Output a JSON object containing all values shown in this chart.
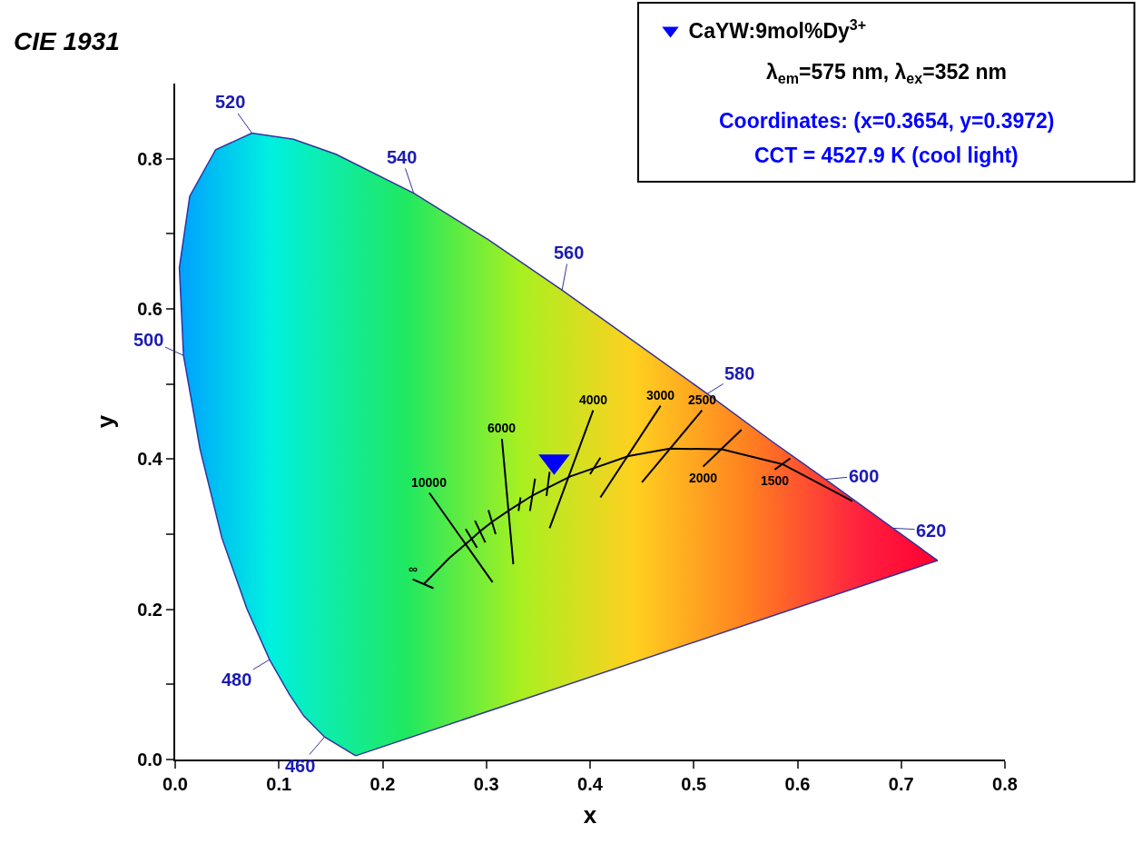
{
  "chart_data": {
    "type": "scatter",
    "title": "CIE 1931",
    "xlabel": "x",
    "ylabel": "y",
    "xlim": [
      0,
      0.8
    ],
    "xticks": [
      {
        "value": 0,
        "label": "0.0"
      },
      0.1,
      0.2,
      0.3,
      0.4,
      0.5,
      0.6,
      0.7,
      0.8
    ],
    "ylim": [
      0,
      0.9
    ],
    "yticks": [
      {
        "value": 0,
        "label": "0.0"
      },
      {
        "value": 0.1,
        "label": null
      },
      0.2,
      {
        "value": 0.3,
        "label": null
      },
      0.4,
      {
        "value": 0.5,
        "label": null
      },
      0.6,
      {
        "value": 0.7,
        "label": null
      },
      0.8
    ],
    "legend": "top right",
    "series": [
      {
        "type": "area",
        "color": "#333399",
        "x": [
          0.174,
          0.144,
          0.124,
          0.11,
          0.091,
          0.069,
          0.045,
          0.024,
          0.008,
          0.004,
          0.014,
          0.039,
          0.074,
          0.114,
          0.155,
          0.23,
          0.302,
          0.373,
          0.444,
          0.513,
          0.575,
          0.627,
          0.666,
          0.692,
          0.719,
          0.735,
          0.174
        ],
        "values": [
          0.005,
          0.03,
          0.058,
          0.087,
          0.133,
          0.201,
          0.295,
          0.413,
          0.538,
          0.655,
          0.75,
          0.812,
          0.834,
          0.826,
          0.806,
          0.754,
          0.692,
          0.625,
          0.555,
          0.487,
          0.424,
          0.373,
          0.334,
          0.308,
          0.281,
          0.265,
          0.005
        ]
      },
      {
        "type": "line",
        "color": "#000000",
        "x": [
          0.653,
          0.586,
          0.527,
          0.477,
          0.437,
          0.381,
          0.345,
          0.322,
          0.306,
          0.295,
          0.281,
          0.264,
          0.257,
          0.24
        ],
        "values": [
          0.344,
          0.393,
          0.413,
          0.414,
          0.404,
          0.377,
          0.352,
          0.332,
          0.317,
          0.305,
          0.288,
          0.268,
          0.258,
          0.234
        ]
      },
      {
        "type": "line",
        "color": "#000000",
        "x": [
          0.245,
          0.306
        ],
        "values": [
          0.355,
          0.236
        ]
      },
      {
        "type": "line",
        "color": "#000000",
        "x": [
          0.315,
          0.326
        ],
        "values": [
          0.427,
          0.26
        ]
      },
      {
        "type": "line",
        "color": "#000000",
        "x": [
          0.403,
          0.361
        ],
        "values": [
          0.465,
          0.308
        ]
      },
      {
        "type": "line",
        "color": "#000000",
        "x": [
          0.468,
          0.41
        ],
        "values": [
          0.471,
          0.349
        ]
      },
      {
        "type": "line",
        "color": "#000000",
        "x": [
          0.508,
          0.45
        ],
        "values": [
          0.465,
          0.369
        ]
      },
      {
        "type": "line",
        "color": "#000000",
        "x": [
          0.546,
          0.509
        ],
        "values": [
          0.439,
          0.39
        ]
      },
      {
        "type": "line",
        "color": "#000000",
        "x": [
          0.593,
          0.578
        ],
        "values": [
          0.401,
          0.386
        ]
      },
      {
        "type": "line",
        "color": "#000000",
        "x": [
          0.229,
          0.249
        ],
        "values": [
          0.24,
          0.228
        ]
      },
      {
        "type": "line",
        "color": "#000000",
        "x": [
          0.28,
          0.291
        ],
        "values": [
          0.307,
          0.282
        ]
      },
      {
        "type": "line",
        "color": "#000000",
        "x": [
          0.289,
          0.299
        ],
        "values": [
          0.318,
          0.289
        ]
      },
      {
        "type": "line",
        "color": "#000000",
        "x": [
          0.302,
          0.309
        ],
        "values": [
          0.332,
          0.3
        ]
      },
      {
        "type": "line",
        "color": "#000000",
        "x": [
          0.333,
          0.331
        ],
        "values": [
          0.349,
          0.331
        ]
      },
      {
        "type": "line",
        "color": "#000000",
        "x": [
          0.347,
          0.342
        ],
        "values": [
          0.374,
          0.331
        ]
      },
      {
        "type": "line",
        "color": "#000000",
        "x": [
          0.361,
          0.358
        ],
        "values": [
          0.383,
          0.351
        ]
      },
      {
        "type": "line",
        "color": "#000000",
        "x": [
          0.41,
          0.4
        ],
        "values": [
          0.402,
          0.38
        ]
      },
      {
        "type": "scatter",
        "name": "CaYW:9mol%Dy$^{3+}$",
        "color": "#0000ff",
        "marker": "triangle",
        "x": [
          0.3654
        ],
        "values": [
          0.3972
        ]
      }
    ],
    "annotations": [
      "λ$_{em}$=575 nm, λ$_{ex}$=352 nm",
      "Coordinates: (x=0.3654, y=0.3972)",
      "CCT = 4527.9 K (cool light)",
      {
        "text": "460",
        "x": 0.144,
        "y": 0.03
      },
      {
        "text": "480",
        "x": 0.091,
        "y": 0.133
      },
      {
        "text": "500",
        "x": 0.008,
        "y": 0.538
      },
      {
        "text": "520",
        "x": 0.074,
        "y": 0.834
      },
      {
        "text": "540",
        "x": 0.23,
        "y": 0.754
      },
      {
        "text": "560",
        "x": 0.373,
        "y": 0.625
      },
      {
        "text": "580",
        "x": 0.513,
        "y": 0.487
      },
      {
        "text": "600",
        "x": 0.627,
        "y": 0.373
      },
      {
        "text": "620",
        "x": 0.692,
        "y": 0.308
      },
      {
        "text": "10000",
        "x": 0.245,
        "y": 0.355
      },
      {
        "text": "6000",
        "x": 0.315,
        "y": 0.427
      },
      {
        "text": "4000",
        "x": 0.403,
        "y": 0.465
      },
      {
        "text": "3000",
        "x": 0.468,
        "y": 0.471
      },
      {
        "text": "2500",
        "x": 0.508,
        "y": 0.465
      },
      {
        "text": "2000",
        "x": 0.509,
        "y": 0.39
      },
      {
        "text": "1500",
        "x": 0.578,
        "y": 0.386
      },
      {
        "text": "∞",
        "x": 0.229,
        "y": 0.24
      }
    ]
  }
}
